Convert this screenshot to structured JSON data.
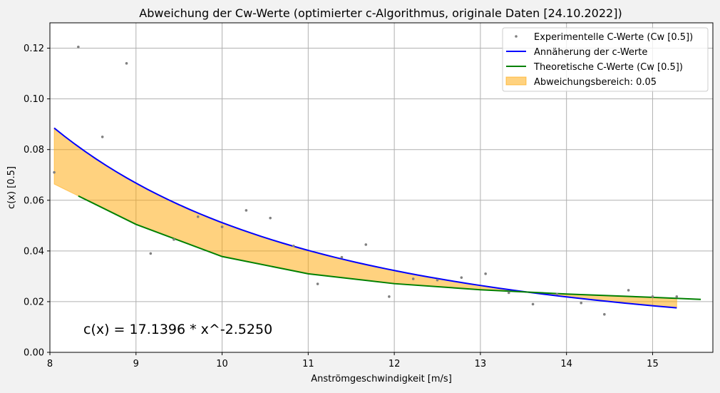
{
  "chart_data": {
    "type": "scatter",
    "title": "Abweichung der Cw-Werte (optimierter c-Algorithmus, originale Daten [24.10.2022])",
    "xlabel": "Anströmgeschwindigkeit [m/s]",
    "ylabel": "c(x) [0.5]",
    "xlim": [
      8.0,
      15.7
    ],
    "ylim": [
      0.0,
      0.13
    ],
    "xticks": [
      8,
      9,
      10,
      11,
      12,
      13,
      14,
      15
    ],
    "yticks": [
      0.0,
      0.02,
      0.04,
      0.06,
      0.08,
      0.1,
      0.12
    ],
    "grid": true,
    "legend_position": "top-right",
    "annotation": "c(x) = 17.1396 * x^-2.5250",
    "experimental": {
      "name": "Experimentelle C-Werte (Cw [0.5])",
      "color": "#808080",
      "x": [
        8.05,
        8.33,
        8.61,
        8.89,
        9.17,
        9.44,
        9.72,
        10.0,
        10.28,
        10.56,
        10.83,
        11.11,
        11.39,
        11.67,
        11.94,
        12.22,
        12.5,
        12.78,
        13.06,
        13.33,
        13.61,
        13.89,
        14.17,
        14.44,
        14.72,
        15.0,
        15.28
      ],
      "y": [
        0.071,
        0.1205,
        0.085,
        0.114,
        0.039,
        0.0445,
        0.0535,
        0.0495,
        0.056,
        0.053,
        0.042,
        0.027,
        0.0375,
        0.0425,
        0.022,
        0.029,
        0.0285,
        0.0295,
        0.031,
        0.0235,
        0.019,
        0.023,
        0.0195,
        0.015,
        0.0245,
        0.022,
        0.022
      ]
    },
    "approximation": {
      "name": "Annäherung der c-Werte",
      "color": "#0000ff",
      "coefficient": 17.1396,
      "exponent": -2.525,
      "x_range": [
        8.05,
        15.28
      ]
    },
    "theoretical": {
      "name": "Theoretische C-Werte (Cw [0.5])",
      "color": "#008000",
      "x": [
        8.33,
        9.0,
        10.0,
        11.0,
        12.0,
        13.0,
        14.0,
        15.0,
        15.56
      ],
      "y": [
        0.0617,
        0.0505,
        0.0378,
        0.031,
        0.0271,
        0.0247,
        0.023,
        0.0217,
        0.0209
      ]
    },
    "band": {
      "name": "Abweichungsbereich: 0.05",
      "color": "#ffa500"
    }
  }
}
